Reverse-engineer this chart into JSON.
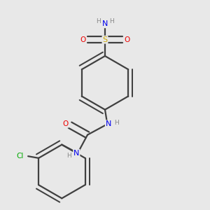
{
  "bg_color": "#e8e8e8",
  "atom_colors": {
    "C": "#404040",
    "N": "#0000ee",
    "O": "#ee0000",
    "S": "#ccaa00",
    "Cl": "#00aa00",
    "H": "#888888"
  },
  "bond_color": "#404040",
  "bond_lw": 1.6,
  "dbo": 0.022,
  "ring_r": 0.115
}
